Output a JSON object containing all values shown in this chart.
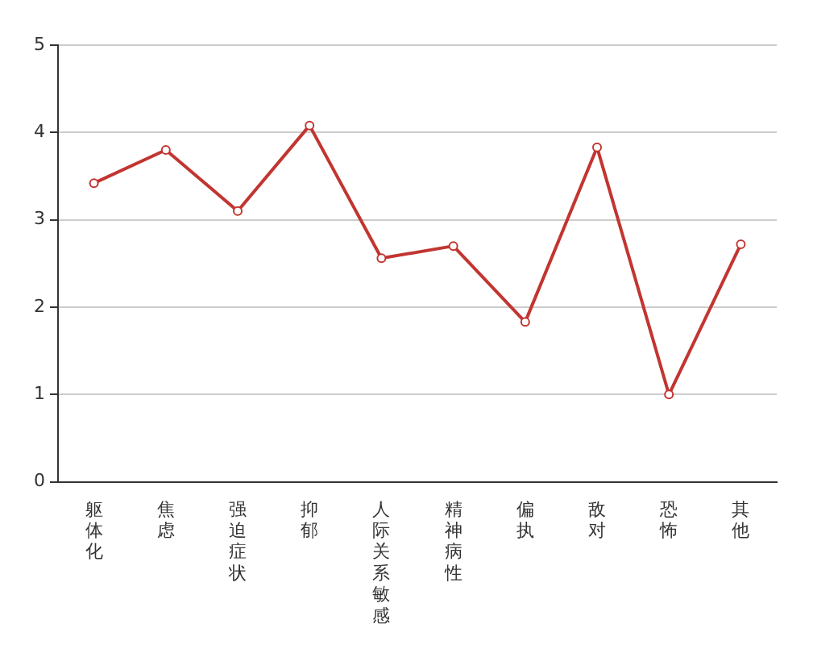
{
  "chart_data": {
    "type": "line",
    "categories": [
      "躯体化",
      "焦虑",
      "强迫症状",
      "抑郁",
      "人际关系敏感",
      "精神病性",
      "偏执",
      "敌对",
      "恐怖",
      "其他"
    ],
    "series": [
      {
        "color": "#c23531",
        "values": [
          3.42,
          3.8,
          3.1,
          4.08,
          2.56,
          2.7,
          1.83,
          3.83,
          1.0,
          2.72
        ]
      }
    ],
    "ylim": [
      0,
      5
    ],
    "yticks": [
      0,
      1,
      2,
      3,
      4,
      5
    ],
    "grid": "y",
    "legend": false,
    "marker": "circle",
    "line_style": "solid"
  }
}
